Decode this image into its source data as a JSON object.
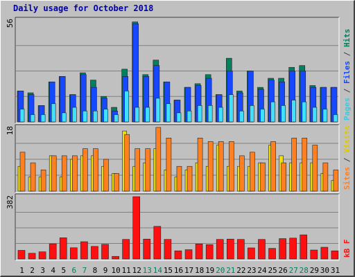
{
  "chart_data": {
    "type": "bar",
    "title": "Daily usage for October 2018",
    "categories": [
      "1",
      "2",
      "3",
      "4",
      "5",
      "6",
      "7",
      "8",
      "9",
      "10",
      "11",
      "12",
      "13",
      "14",
      "15",
      "16",
      "17",
      "18",
      "19",
      "20",
      "21",
      "22",
      "23",
      "24",
      "25",
      "26",
      "27",
      "28",
      "29",
      "30",
      "31"
    ],
    "weekend_days": [
      "6",
      "7",
      "13",
      "14",
      "20",
      "21",
      "27",
      "28"
    ],
    "panels": [
      {
        "id": "top",
        "ymax_label": "56",
        "ylim": [
          0,
          56
        ],
        "series": [
          {
            "name": "Hits",
            "color": "#00805c",
            "values": [
              17,
              16,
              9,
              22,
              25,
              15,
              27,
              23,
              14,
              8,
              29,
              55,
              26,
              34,
              22,
              12,
              19,
              21,
              26,
              15,
              35,
              17,
              28,
              19,
              24,
              24,
              30,
              31,
              20,
              19,
              19
            ]
          },
          {
            "name": "Files",
            "color": "#1548ff",
            "values": [
              17,
              15,
              9,
              22,
              25,
              15,
              26,
              19,
              13,
              6,
              25,
              54,
              25,
              31,
              22,
              12,
              19,
              20,
              24,
              15,
              28,
              16,
              28,
              18,
              23,
              22,
              28,
              28,
              19,
              19,
              19
            ]
          },
          {
            "name": "Pages",
            "color": "#40e0ff",
            "values": [
              7,
              4,
              4,
              10,
              5,
              8,
              6,
              6,
              7,
              4,
              17,
              8,
              8,
              13,
              10,
              5,
              6,
              9,
              9,
              8,
              15,
              6,
              9,
              7,
              11,
              9,
              12,
              11,
              8,
              7,
              4
            ]
          }
        ],
        "axis_labels": [
          {
            "text": "Pages",
            "color": "#40c8e0"
          },
          {
            "text": " / ",
            "color": "#404040"
          },
          {
            "text": "Files",
            "color": "#1548ff"
          },
          {
            "text": " / ",
            "color": "#404040"
          },
          {
            "text": "Hits",
            "color": "#00805c"
          }
        ]
      },
      {
        "id": "mid",
        "ymax_label": "18",
        "ylim": [
          0,
          18
        ],
        "series": [
          {
            "name": "Sites",
            "color": "#f0e000",
            "values": [
              7,
              4,
              4,
              10,
              4,
              9,
              10,
              10,
              7,
              5,
              17,
              7,
              8,
              12,
              6,
              4,
              6,
              8,
              7,
              13,
              7,
              7,
              7,
              8,
              13,
              10,
              8,
              8,
              8,
              5,
              3
            ]
          },
          {
            "name": "Visits",
            "color": "#ff8020",
            "values": [
              11,
              8,
              6,
              10,
              10,
              10,
              12,
              12,
              9,
              5,
              16,
              12,
              12,
              18,
              15,
              7,
              7,
              15,
              14,
              14,
              14,
              10,
              11,
              8,
              14,
              8,
              15,
              15,
              13,
              8,
              6
            ]
          }
        ],
        "axis_labels": [
          {
            "text": "Sites",
            "color": "#ff8020"
          },
          {
            "text": " / ",
            "color": "#404040"
          },
          {
            "text": "Visits",
            "color": "#e0c800"
          }
        ]
      },
      {
        "id": "bot",
        "ymax_label": "382",
        "ylim": [
          0,
          382
        ],
        "series": [
          {
            "name": "kB F",
            "color": "#ff1010",
            "values": [
              53,
              35,
              44,
              93,
              130,
              69,
              106,
              77,
              90,
              16,
              120,
              382,
              122,
              200,
              120,
              50,
              57,
              92,
              88,
              120,
              122,
              120,
              68,
              120,
              65,
              125,
              128,
              148,
              55,
              72,
              50
            ]
          }
        ],
        "axis_labels": [
          {
            "text": "kB F",
            "color": "#ff1010"
          }
        ]
      }
    ]
  }
}
